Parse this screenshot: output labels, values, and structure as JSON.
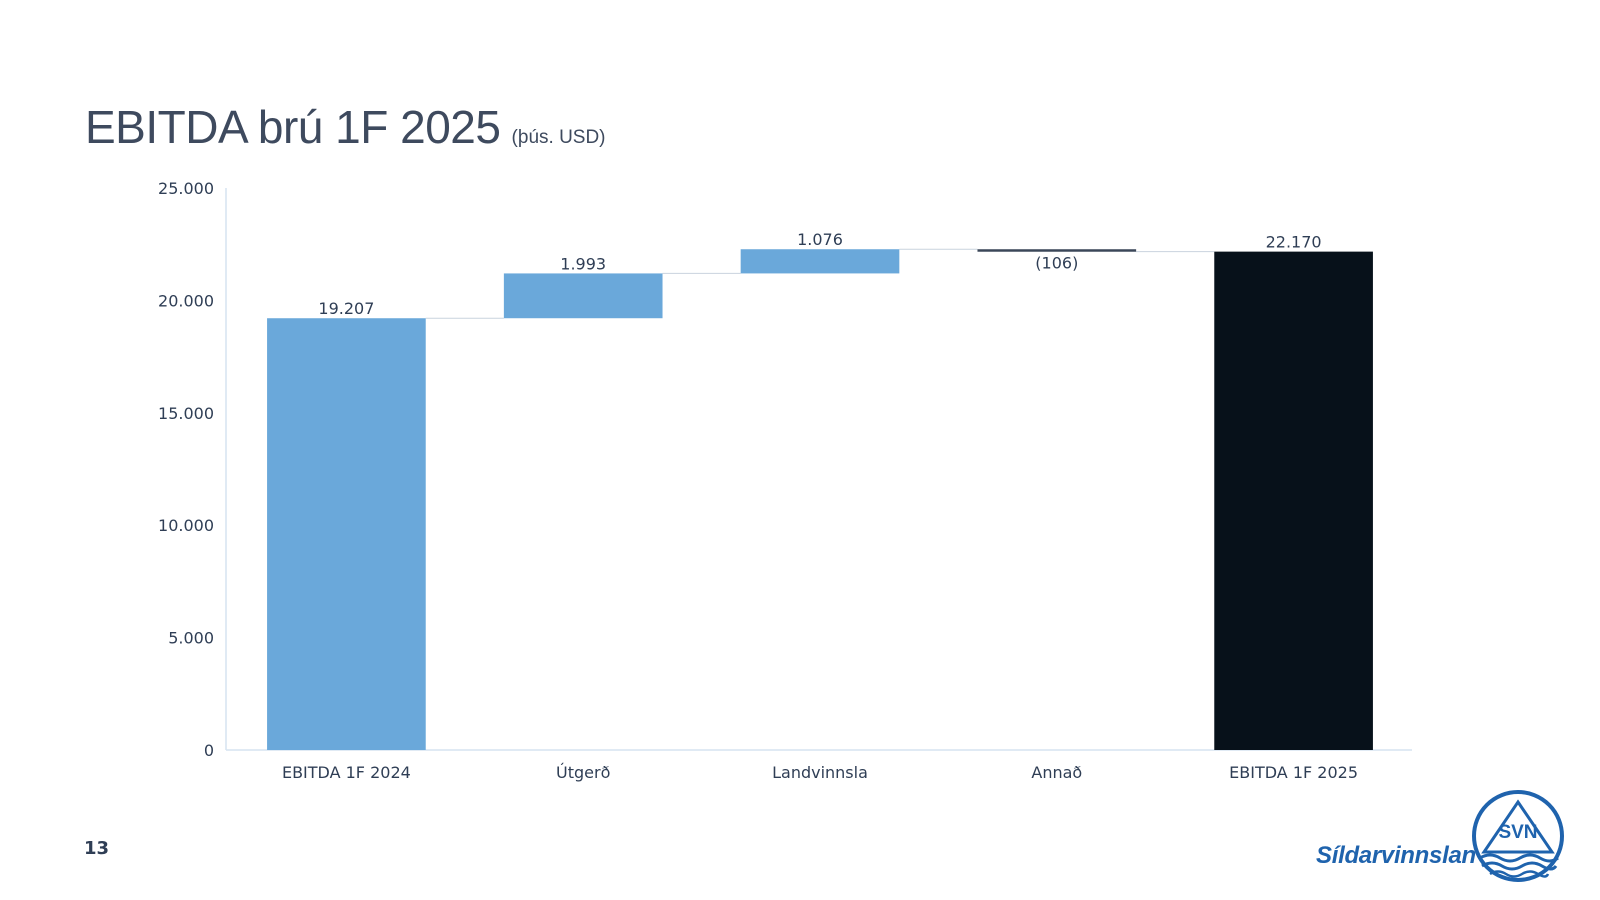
{
  "title": "EBITDA brú 1F 2025",
  "unit": "(þús. USD)",
  "page_number": "13",
  "logo": {
    "name": "Síldarvinnslan hf",
    "badge": "SVN",
    "icon": "svn-logo-icon"
  },
  "colors": {
    "increase": "#6aa8da",
    "decrease": "#3b4759",
    "total_start": "#6aa8da",
    "total_end": "#07111a",
    "axis_text": "#2f3e55",
    "axis_line": "#d6e4f1",
    "connector": "#c9d3de",
    "brand_blue": "#1f63ad"
  },
  "chart_data": {
    "type": "bar",
    "subtype": "waterfall",
    "title": "EBITDA brú 1F 2025",
    "subtitle": "(þús. USD)",
    "xlabel": "",
    "ylabel": "",
    "ylim": [
      0,
      25000
    ],
    "yticks": [
      0,
      5000,
      10000,
      15000,
      20000,
      25000
    ],
    "ytick_labels": [
      "0",
      "5.000",
      "10.000",
      "15.000",
      "20.000",
      "25.000"
    ],
    "grid": false,
    "legend": "none",
    "categories": [
      "EBITDA 1F 2024",
      "Útgerð",
      "Landvinnsla",
      "Annað",
      "EBITDA 1F 2025"
    ],
    "values": [
      19207,
      1993,
      1076,
      -106,
      22170
    ],
    "kinds": [
      "total",
      "delta",
      "delta",
      "delta",
      "total"
    ],
    "labels": [
      "19.207",
      "1.993",
      "1.076",
      "(106)",
      "22.170"
    ]
  }
}
